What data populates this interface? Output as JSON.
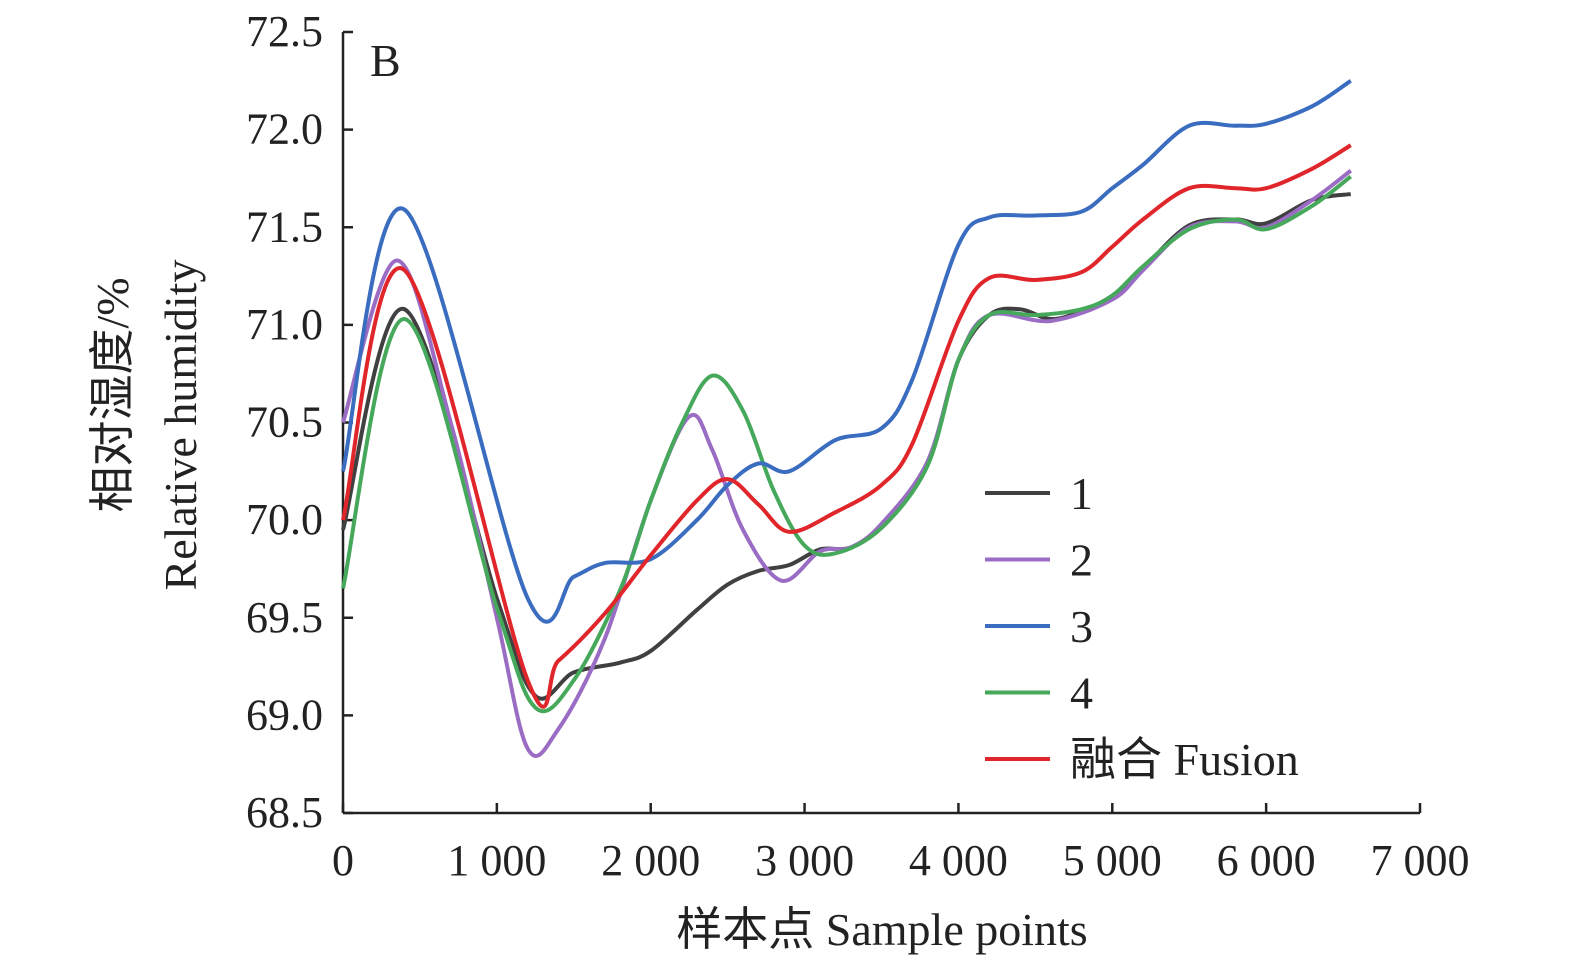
{
  "chart_data": {
    "type": "line",
    "panel_label": "B",
    "xlabel": "样本点 Sample points",
    "ylabel_cn": "相对湿度/%",
    "ylabel_en": "Relative humidity",
    "xlim": [
      0,
      7000
    ],
    "ylim": [
      68.5,
      72.5
    ],
    "xticks": [
      0,
      1000,
      2000,
      3000,
      4000,
      5000,
      6000,
      7000
    ],
    "xtick_labels": [
      "0",
      "1 000",
      "2 000",
      "3 000",
      "4 000",
      "5 000",
      "6 000",
      "7 000"
    ],
    "yticks": [
      68.5,
      69.0,
      69.5,
      70.0,
      70.5,
      71.0,
      71.5,
      72.0,
      72.5
    ],
    "ytick_labels": [
      "68.5",
      "69.0",
      "69.5",
      "70.0",
      "70.5",
      "71.0",
      "71.5",
      "72.0",
      "72.5"
    ],
    "grid": false,
    "legend_position": "bottom-right",
    "series": [
      {
        "name": "1",
        "color": "#404040",
        "x": [
          0,
          400,
          1000,
          1250,
          1500,
          1800,
          2000,
          2300,
          2500,
          2700,
          2900,
          3100,
          3300,
          3500,
          3800,
          4000,
          4200,
          4400,
          4600,
          4800,
          5000,
          5200,
          5500,
          5800,
          6000,
          6300,
          6550
        ],
        "y": [
          69.95,
          71.08,
          69.6,
          69.1,
          69.22,
          69.27,
          69.33,
          69.54,
          69.67,
          69.74,
          69.77,
          69.85,
          69.86,
          69.98,
          70.3,
          70.82,
          71.05,
          71.08,
          71.03,
          71.07,
          71.15,
          71.29,
          71.51,
          71.54,
          71.52,
          71.64,
          71.67
        ]
      },
      {
        "name": "2",
        "color": "#9a6cc4",
        "x": [
          0,
          350,
          700,
          1000,
          1200,
          1400,
          1700,
          2000,
          2250,
          2400,
          2600,
          2850,
          3100,
          3300,
          3500,
          3800,
          4000,
          4200,
          4600,
          5000,
          5200,
          5500,
          5800,
          6000,
          6300,
          6550
        ],
        "y": [
          70.5,
          71.33,
          70.5,
          69.5,
          68.83,
          68.93,
          69.39,
          70.1,
          70.53,
          70.36,
          69.95,
          69.69,
          69.84,
          69.86,
          69.98,
          70.3,
          70.82,
          71.05,
          71.02,
          71.13,
          71.28,
          71.5,
          71.53,
          71.5,
          71.64,
          71.79
        ]
      },
      {
        "name": "3",
        "color": "#3a6cc0",
        "x": [
          0,
          400,
          1200,
          1500,
          1700,
          2000,
          2300,
          2500,
          2700,
          2900,
          3200,
          3500,
          3700,
          4000,
          4200,
          4500,
          4800,
          5000,
          5200,
          5500,
          5800,
          6000,
          6300,
          6550
        ],
        "y": [
          70.25,
          71.59,
          69.6,
          69.71,
          69.78,
          69.8,
          70.0,
          70.18,
          70.29,
          70.25,
          70.41,
          70.47,
          70.72,
          71.41,
          71.55,
          71.56,
          71.58,
          71.7,
          71.82,
          72.02,
          72.02,
          72.03,
          72.12,
          72.25
        ]
      },
      {
        "name": "4",
        "color": "#46a85a",
        "x": [
          0,
          400,
          1000,
          1250,
          1500,
          1800,
          2000,
          2200,
          2400,
          2600,
          2800,
          3000,
          3200,
          3500,
          3800,
          4000,
          4200,
          4500,
          4800,
          5000,
          5200,
          5500,
          5800,
          6000,
          6300,
          6550
        ],
        "y": [
          69.65,
          71.03,
          69.55,
          69.04,
          69.18,
          69.64,
          70.1,
          70.49,
          70.74,
          70.56,
          70.15,
          69.87,
          69.83,
          69.96,
          70.28,
          70.82,
          71.05,
          71.05,
          71.08,
          71.15,
          71.3,
          71.49,
          71.54,
          71.49,
          71.61,
          71.76
        ]
      },
      {
        "name": "融合 Fusion",
        "color": "#e0262a",
        "x": [
          0,
          400,
          1200,
          1400,
          1700,
          2000,
          2300,
          2500,
          2700,
          2900,
          3200,
          3500,
          3700,
          4000,
          4200,
          4500,
          4800,
          5000,
          5200,
          5500,
          5800,
          6000,
          6300,
          6550
        ],
        "y": [
          70.0,
          71.28,
          69.18,
          69.28,
          69.52,
          69.82,
          70.1,
          70.21,
          70.08,
          69.94,
          70.04,
          70.18,
          70.39,
          71.02,
          71.24,
          71.23,
          71.27,
          71.4,
          71.54,
          71.7,
          71.7,
          71.7,
          71.8,
          71.92
        ]
      }
    ]
  }
}
